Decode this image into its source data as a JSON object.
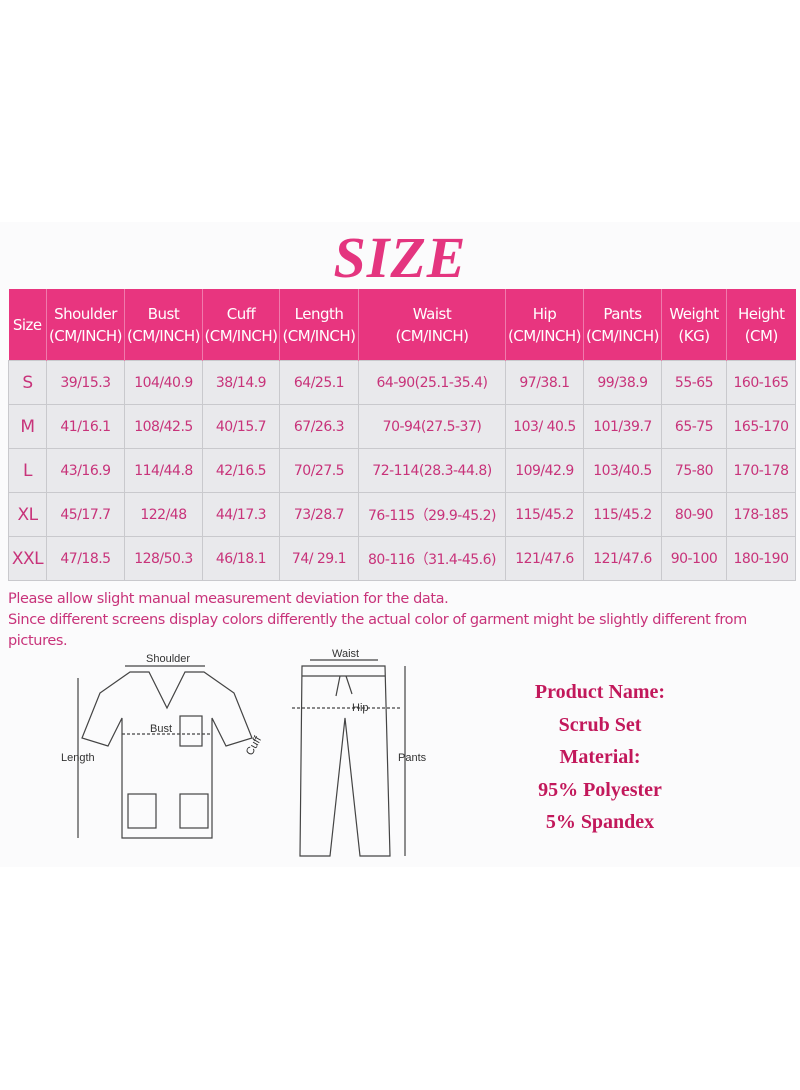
{
  "title": "SIZE",
  "table": {
    "headers": [
      {
        "name": "Size",
        "unit": ""
      },
      {
        "name": "Shoulder",
        "unit": "(CM/INCH)"
      },
      {
        "name": "Bust",
        "unit": "(CM/INCH)"
      },
      {
        "name": "Cuff",
        "unit": "(CM/INCH)"
      },
      {
        "name": "Length",
        "unit": "(CM/INCH)"
      },
      {
        "name": "Waist",
        "unit": "(CM/INCH)"
      },
      {
        "name": "Hip",
        "unit": "(CM/INCH)"
      },
      {
        "name": "Pants",
        "unit": "(CM/INCH)"
      },
      {
        "name": "Weight",
        "unit": "(KG)"
      },
      {
        "name": "Height",
        "unit": "(CM)"
      }
    ],
    "rows": [
      [
        "S",
        "39/15.3",
        "104/40.9",
        "38/14.9",
        "64/25.1",
        "64-90(25.1-35.4)",
        "97/38.1",
        "99/38.9",
        "55-65",
        "160-165"
      ],
      [
        "M",
        "41/16.1",
        "108/42.5",
        "40/15.7",
        "67/26.3",
        "70-94(27.5-37)",
        "103/ 40.5",
        "101/39.7",
        "65-75",
        "165-170"
      ],
      [
        "L",
        "43/16.9",
        "114/44.8",
        "42/16.5",
        "70/27.5",
        "72-114(28.3-44.8)",
        "109/42.9",
        "103/40.5",
        "75-80",
        "170-178"
      ],
      [
        "XL",
        "45/17.7",
        "122/48",
        "44/17.3",
        "73/28.7",
        "76-115（29.9-45.2)",
        "115/45.2",
        "115/45.2",
        "80-90",
        "178-185"
      ],
      [
        "XXL",
        "47/18.5",
        "128/50.3",
        "46/18.1",
        "74/ 29.1",
        "80-116（31.4-45.6)",
        "121/47.6",
        "121/47.6",
        "90-100",
        "180-190"
      ]
    ]
  },
  "notes": [
    "Please allow slight manual measurement deviation for the data.",
    "Since different screens display colors differently the actual color of garment might be slightly different from pictures."
  ],
  "diagram_labels": {
    "shoulder": "Shoulder",
    "bust": "Bust",
    "length": "Length",
    "cuff": "Cuff",
    "waist": "Waist",
    "hip": "Hip",
    "pants": "Pants"
  },
  "product": [
    "Product Name:",
    "Scrub Set",
    "Material:",
    "95% Polyester",
    "5% Spandex"
  ],
  "colors": {
    "accent": "#e8357f",
    "text": "#c8337a",
    "row_bg": "#e9e9ec",
    "product_text": "#c2185b"
  }
}
